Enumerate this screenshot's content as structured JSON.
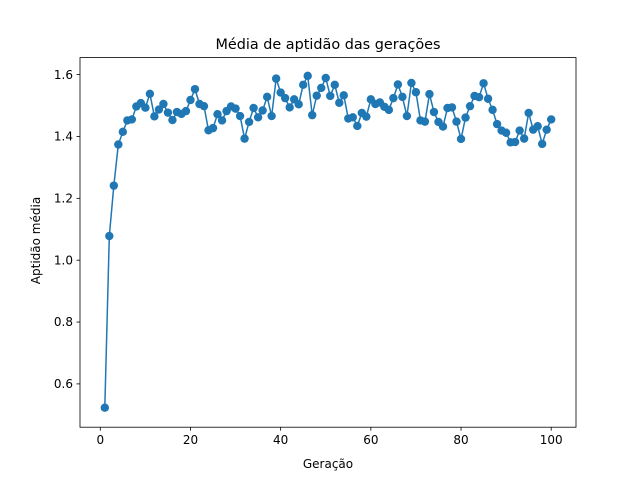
{
  "chart_data": {
    "type": "line",
    "title": "Média de aptidão das gerações",
    "xlabel": "Geração",
    "ylabel": "Aptidão média",
    "xlim": [
      -4.5,
      105.5
    ],
    "ylim": [
      0.46,
      1.655
    ],
    "x_ticks": [
      0,
      20,
      40,
      60,
      80,
      100
    ],
    "y_ticks": [
      0.6,
      0.8,
      1.0,
      1.2,
      1.4,
      1.6
    ],
    "x_tick_labels": [
      "0",
      "20",
      "40",
      "60",
      "80",
      "100"
    ],
    "y_tick_labels": [
      "0.6",
      "0.8",
      "1.0",
      "1.2",
      "1.4",
      "1.6"
    ],
    "grid": false,
    "markers": true,
    "color": "#1f77b4",
    "series": [
      {
        "x": [
          1,
          2,
          3,
          4,
          5,
          6,
          7,
          8,
          9,
          10,
          11,
          12,
          13,
          14,
          15,
          16,
          17,
          18,
          19,
          20,
          21,
          22,
          23,
          24,
          25,
          26,
          27,
          28,
          29,
          30,
          31,
          32,
          33,
          34,
          35,
          36,
          37,
          38,
          39,
          40,
          41,
          42,
          43,
          44,
          45,
          46,
          47,
          48,
          49,
          50,
          51,
          52,
          53,
          54,
          55,
          56,
          57,
          58,
          59,
          60,
          61,
          62,
          63,
          64,
          65,
          66,
          67,
          68,
          69,
          70,
          71,
          72,
          73,
          74,
          75,
          76,
          77,
          78,
          79,
          80,
          81,
          82,
          83,
          84,
          85,
          86,
          87,
          88,
          89,
          90,
          91,
          92,
          93,
          94,
          95,
          96,
          97,
          98,
          99,
          100
        ],
        "values": [
          0.523,
          1.078,
          1.241,
          1.374,
          1.415,
          1.452,
          1.455,
          1.497,
          1.508,
          1.493,
          1.538,
          1.465,
          1.487,
          1.505,
          1.477,
          1.453,
          1.479,
          1.473,
          1.482,
          1.518,
          1.553,
          1.505,
          1.498,
          1.42,
          1.427,
          1.472,
          1.452,
          1.482,
          1.497,
          1.49,
          1.466,
          1.393,
          1.447,
          1.492,
          1.462,
          1.484,
          1.528,
          1.466,
          1.587,
          1.542,
          1.524,
          1.494,
          1.52,
          1.504,
          1.567,
          1.596,
          1.469,
          1.532,
          1.557,
          1.589,
          1.531,
          1.567,
          1.509,
          1.533,
          1.458,
          1.462,
          1.434,
          1.476,
          1.464,
          1.52,
          1.505,
          1.51,
          1.496,
          1.486,
          1.524,
          1.568,
          1.528,
          1.466,
          1.573,
          1.543,
          1.452,
          1.448,
          1.537,
          1.479,
          1.447,
          1.432,
          1.492,
          1.494,
          1.448,
          1.392,
          1.461,
          1.498,
          1.531,
          1.527,
          1.572,
          1.522,
          1.486,
          1.44,
          1.419,
          1.412,
          1.381,
          1.382,
          1.419,
          1.393,
          1.476,
          1.422,
          1.433,
          1.376,
          1.422,
          1.455
        ]
      }
    ]
  }
}
